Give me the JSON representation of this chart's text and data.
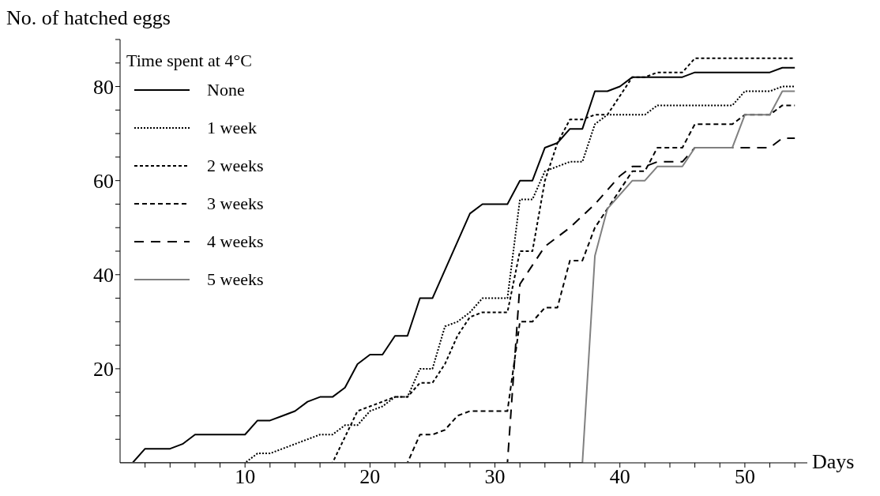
{
  "chart_data": {
    "type": "line",
    "xlabel": "Days",
    "ylabel": "No. of hatched eggs",
    "legend_title": "Time spent at 4°C",
    "legend": "top left",
    "marker": "none",
    "xlim": [
      0,
      55
    ],
    "ylim": [
      0,
      90
    ],
    "xticks": [
      {
        "value": 2,
        "label": null
      },
      {
        "value": 4,
        "label": null
      },
      {
        "value": 6,
        "label": null
      },
      {
        "value": 8,
        "label": null
      },
      10,
      {
        "value": 12,
        "label": null
      },
      {
        "value": 14,
        "label": null
      },
      {
        "value": 16,
        "label": null
      },
      {
        "value": 18,
        "label": null
      },
      20,
      {
        "value": 22,
        "label": null
      },
      {
        "value": 24,
        "label": null
      },
      {
        "value": 26,
        "label": null
      },
      {
        "value": 28,
        "label": null
      },
      30,
      {
        "value": 32,
        "label": null
      },
      {
        "value": 34,
        "label": null
      },
      {
        "value": 36,
        "label": null
      },
      {
        "value": 38,
        "label": null
      },
      40,
      {
        "value": 42,
        "label": null
      },
      {
        "value": 44,
        "label": null
      },
      {
        "value": 46,
        "label": null
      },
      {
        "value": 48,
        "label": null
      },
      50,
      {
        "value": 52,
        "label": null
      },
      {
        "value": 54,
        "label": null
      }
    ],
    "yticks": [
      {
        "value": 5,
        "label": null
      },
      {
        "value": 10,
        "label": null
      },
      {
        "value": 15,
        "label": null
      },
      20,
      {
        "value": 25,
        "label": null
      },
      {
        "value": 30,
        "label": null
      },
      {
        "value": 35,
        "label": null
      },
      40,
      {
        "value": 45,
        "label": null
      },
      {
        "value": 50,
        "label": null
      },
      {
        "value": 55,
        "label": null
      },
      60,
      {
        "value": 65,
        "label": null
      },
      {
        "value": 70,
        "label": null
      },
      {
        "value": 75,
        "label": null
      },
      80,
      {
        "value": 85,
        "label": null
      },
      {
        "value": 90,
        "label": null
      }
    ],
    "series": [
      {
        "name": "None",
        "color": "#000000",
        "line_style": "solid",
        "x": [
          0,
          1,
          2,
          4,
          5,
          6,
          10,
          11,
          12,
          13,
          14,
          15,
          16,
          17,
          18,
          19,
          20,
          21,
          22,
          23,
          24,
          25,
          28,
          29,
          31,
          32,
          33,
          34,
          35,
          36,
          37,
          38,
          39,
          40,
          41,
          45,
          46,
          52,
          53,
          54
        ],
        "values": [
          0,
          0,
          3,
          3,
          4,
          6,
          6,
          9,
          9,
          10,
          11,
          13,
          14,
          14,
          16,
          21,
          23,
          23,
          27,
          27,
          35,
          35,
          53,
          55,
          55,
          60,
          60,
          67,
          68,
          71,
          71,
          79,
          79,
          80,
          82,
          82,
          83,
          83,
          84,
          84
        ]
      },
      {
        "name": "1 week",
        "color": "#000000",
        "line_style": "dotted",
        "x": [
          0,
          10,
          11,
          12,
          16,
          17,
          18,
          19,
          20,
          21,
          22,
          23,
          24,
          25,
          26,
          27,
          28,
          29,
          31,
          32,
          33,
          34,
          36,
          37,
          38,
          39,
          42,
          43,
          49,
          50,
          52,
          53,
          54
        ],
        "values": [
          0,
          0,
          2,
          2,
          6,
          6,
          8,
          8,
          11,
          12,
          14,
          14,
          20,
          20,
          29,
          30,
          32,
          35,
          35,
          56,
          56,
          62,
          64,
          64,
          72,
          74,
          74,
          76,
          76,
          79,
          79,
          80,
          80
        ]
      },
      {
        "name": "2 weeks",
        "color": "#000000",
        "line_style": "dashed",
        "x": [
          0,
          17,
          19,
          20,
          21,
          22,
          23,
          24,
          25,
          26,
          27,
          28,
          29,
          31,
          32,
          33,
          34,
          35,
          36,
          37,
          38,
          39,
          40,
          41,
          42,
          43,
          45,
          46,
          54
        ],
        "values": [
          0,
          0,
          11,
          12,
          13,
          14,
          14,
          17,
          17,
          21,
          27,
          31,
          32,
          32,
          45,
          45,
          60,
          68,
          73,
          73,
          74,
          74,
          78,
          82,
          82,
          83,
          83,
          86,
          86
        ]
      },
      {
        "name": "3 weeks",
        "color": "#000000",
        "line_style": "dashed",
        "x": [
          0,
          23,
          24,
          25,
          26,
          27,
          28,
          31,
          32,
          33,
          34,
          35,
          36,
          37,
          38,
          39,
          40,
          41,
          42,
          43,
          45,
          46,
          49,
          50,
          52,
          53,
          54
        ],
        "values": [
          0,
          0,
          6,
          6,
          7,
          10,
          11,
          11,
          30,
          30,
          33,
          33,
          43,
          43,
          50,
          54,
          58,
          62,
          62,
          67,
          67,
          72,
          72,
          74,
          74,
          76,
          76
        ]
      },
      {
        "name": "4 weeks",
        "color": "#000000",
        "line_style": "dashed",
        "x": [
          0,
          31,
          32,
          33,
          34,
          36,
          38,
          40,
          41,
          42,
          43,
          45,
          46,
          52,
          53,
          54
        ],
        "values": [
          0,
          0,
          38,
          42,
          46,
          50,
          55,
          61,
          63,
          63,
          64,
          64,
          67,
          67,
          69,
          69
        ]
      },
      {
        "name": "5 weeks",
        "color": "#808080",
        "line_style": "solid",
        "x": [
          0,
          37,
          38,
          39,
          41,
          42,
          43,
          45,
          46,
          49,
          50,
          52,
          53,
          54
        ],
        "values": [
          0,
          0,
          44,
          54,
          60,
          60,
          63,
          63,
          67,
          67,
          74,
          74,
          79,
          79
        ]
      }
    ]
  }
}
